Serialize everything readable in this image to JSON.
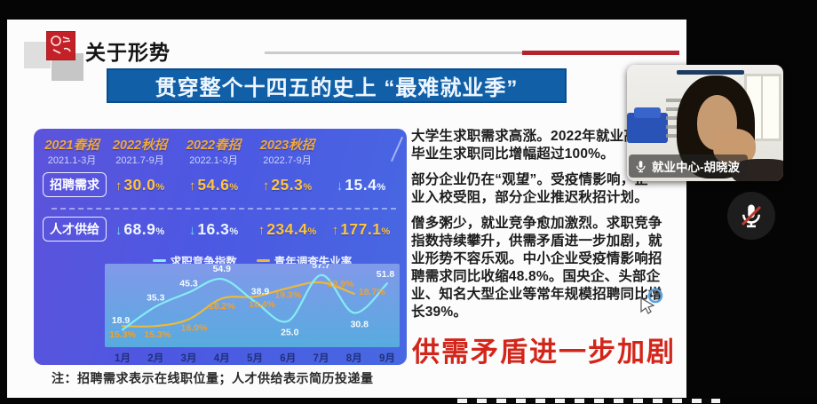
{
  "slide": {
    "section_title": "关于形势",
    "banner_title": "贯穿整个十四五的史上 “最难就业季”",
    "table": {
      "columns": [
        {
          "season": "2021春招",
          "period": "2021.1-3月"
        },
        {
          "season": "2022秋招",
          "period": "2021.7-9月"
        },
        {
          "season": "2022春招",
          "period": "2022.1-3月"
        },
        {
          "season": "2023秋招",
          "period": "2022.7-9月"
        }
      ],
      "rows": [
        {
          "label": "招聘需求",
          "values": [
            {
              "dir": "up",
              "text": "30.0%"
            },
            {
              "dir": "up",
              "text": "54.6%"
            },
            {
              "dir": "up",
              "text": "25.3%"
            },
            {
              "dir": "down",
              "text": "15.4%"
            }
          ]
        },
        {
          "label": "人才供给",
          "values": [
            {
              "dir": "down",
              "text": "68.9%"
            },
            {
              "dir": "down",
              "text": "16.3%"
            },
            {
              "dir": "up",
              "text": "234.4%"
            },
            {
              "dir": "up",
              "text": "177.1%"
            }
          ]
        }
      ]
    },
    "chart_data": {
      "type": "line",
      "categories": [
        "1月",
        "2月",
        "3月",
        "4月",
        "5月",
        "6月",
        "7月",
        "8月",
        "9月"
      ],
      "series": [
        {
          "name": "求职竞争指数",
          "color": "#84ecf4",
          "label_color": "#f4fbff",
          "values": [
            18.9,
            35.3,
            45.3,
            54.9,
            38.9,
            25.0,
            57.7,
            30.8,
            51.8
          ],
          "labels": [
            "18.9",
            "35.3",
            "45.3",
            "54.9",
            "38.9",
            "25.0",
            "57.7",
            "30.8",
            "51.8"
          ],
          "ylim": [
            14,
            62
          ],
          "label_offsets": [
            [
              -2,
              -7
            ],
            [
              0,
              -7
            ],
            [
              0,
              -7
            ],
            [
              0,
              -8
            ],
            [
              6,
              -8
            ],
            [
              2,
              16
            ],
            [
              0,
              -8
            ],
            [
              6,
              16
            ],
            [
              -2,
              -7
            ]
          ]
        },
        {
          "name": "青年调查失业率",
          "color": "#e9b93d",
          "label_color": "#f0a22e",
          "values": [
            15.3,
            15.3,
            16.0,
            18.2,
            18.4,
            19.3,
            19.9,
            18.7
          ],
          "labels": [
            "15.3%",
            "15.3%",
            "16.0%",
            "18.2%",
            "18.4%",
            "19.3%",
            "19.9%",
            "18.7%"
          ],
          "ylim": [
            14.2,
            21.3
          ],
          "label_offsets": [
            [
              0,
              13
            ],
            [
              2,
              13
            ],
            [
              6,
              13
            ],
            [
              0,
              12
            ],
            [
              8,
              12
            ],
            [
              0,
              11
            ],
            [
              22,
              5
            ],
            [
              20,
              1
            ]
          ]
        }
      ],
      "legend_position": "top",
      "grid": false,
      "xlabel": "",
      "ylabel": ""
    },
    "paragraphs": [
      {
        "lines": [
          "大学生求职需求高涨。2022年就业高",
          "毕业生求职同比增幅超过100%。"
        ]
      },
      {
        "lines": [
          "部分企业仍在“观望”。受疫情影响，企",
          "业入校受阻，部分企业推迟秋招计划。"
        ]
      },
      {
        "lines": [
          "僧多粥少，就业竞争愈加激烈。求职竞争",
          "指数持续攀升，供需矛盾进一步加剧，就",
          "业形势不容乐观。中小企业受疫情影响招",
          "聘需求同比收缩48.8%。国央企、头部企",
          "业、知名大型企业等常年规模招聘同比增",
          "长39%。"
        ]
      }
    ],
    "red_headline": "供需矛盾进一步加剧",
    "note": "注：招聘需求表示在线职位量；人才供给表示简历投递量"
  },
  "webcam": {
    "name_label": "就业中心-胡晓波"
  },
  "icons": {
    "mic": "microphone",
    "mic_muted": "microphone-with-red-slash",
    "cursor": "pointer-with-blue-ring"
  },
  "colors": {
    "banner_blue": "#1160a7",
    "panel_purple": "#5d53db",
    "up_yellow": "#ffc43e",
    "down_cyan": "#74dcf8",
    "line_blue": "#84ecf4",
    "line_yellow": "#e9b93d",
    "headline_red": "#d3261b",
    "header_rule_red": "#b3222e",
    "logo_red": "#c32127"
  }
}
